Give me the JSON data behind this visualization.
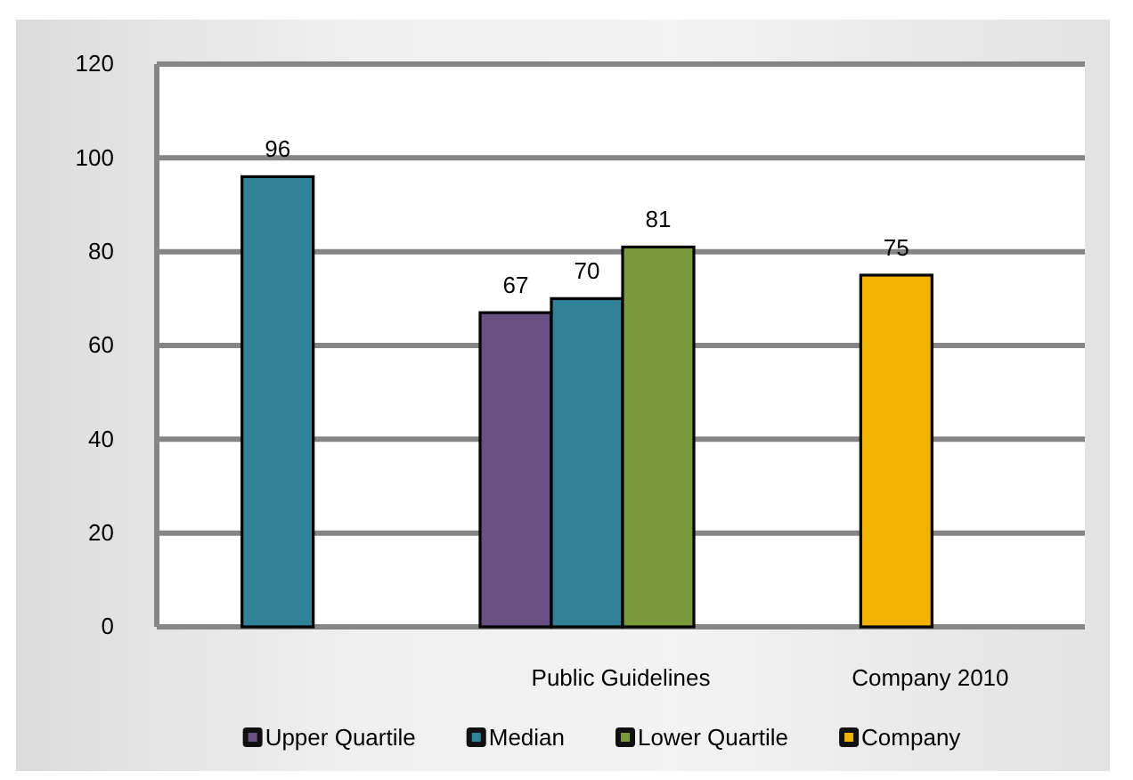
{
  "chart_data": {
    "type": "bar",
    "categories": [
      null,
      "Public Guidelines",
      "Company 2010"
    ],
    "series": [
      {
        "name": "Upper Quartile",
        "color": "#6a4f82",
        "values": [
          null,
          67,
          null
        ]
      },
      {
        "name": "Median",
        "color": "#2f8298",
        "values": [
          96,
          70,
          null
        ]
      },
      {
        "name": "Lower Quartile",
        "color": "#7a9a3c",
        "values": [
          null,
          81,
          null
        ]
      },
      {
        "name": "Company",
        "color": "#f2b200",
        "values": [
          null,
          null,
          75
        ]
      }
    ],
    "ylim": [
      0,
      120
    ],
    "yticks": [
      0,
      20,
      40,
      60,
      80,
      100,
      120
    ],
    "grid": "y",
    "legend": "bottom",
    "data_labels": true
  }
}
